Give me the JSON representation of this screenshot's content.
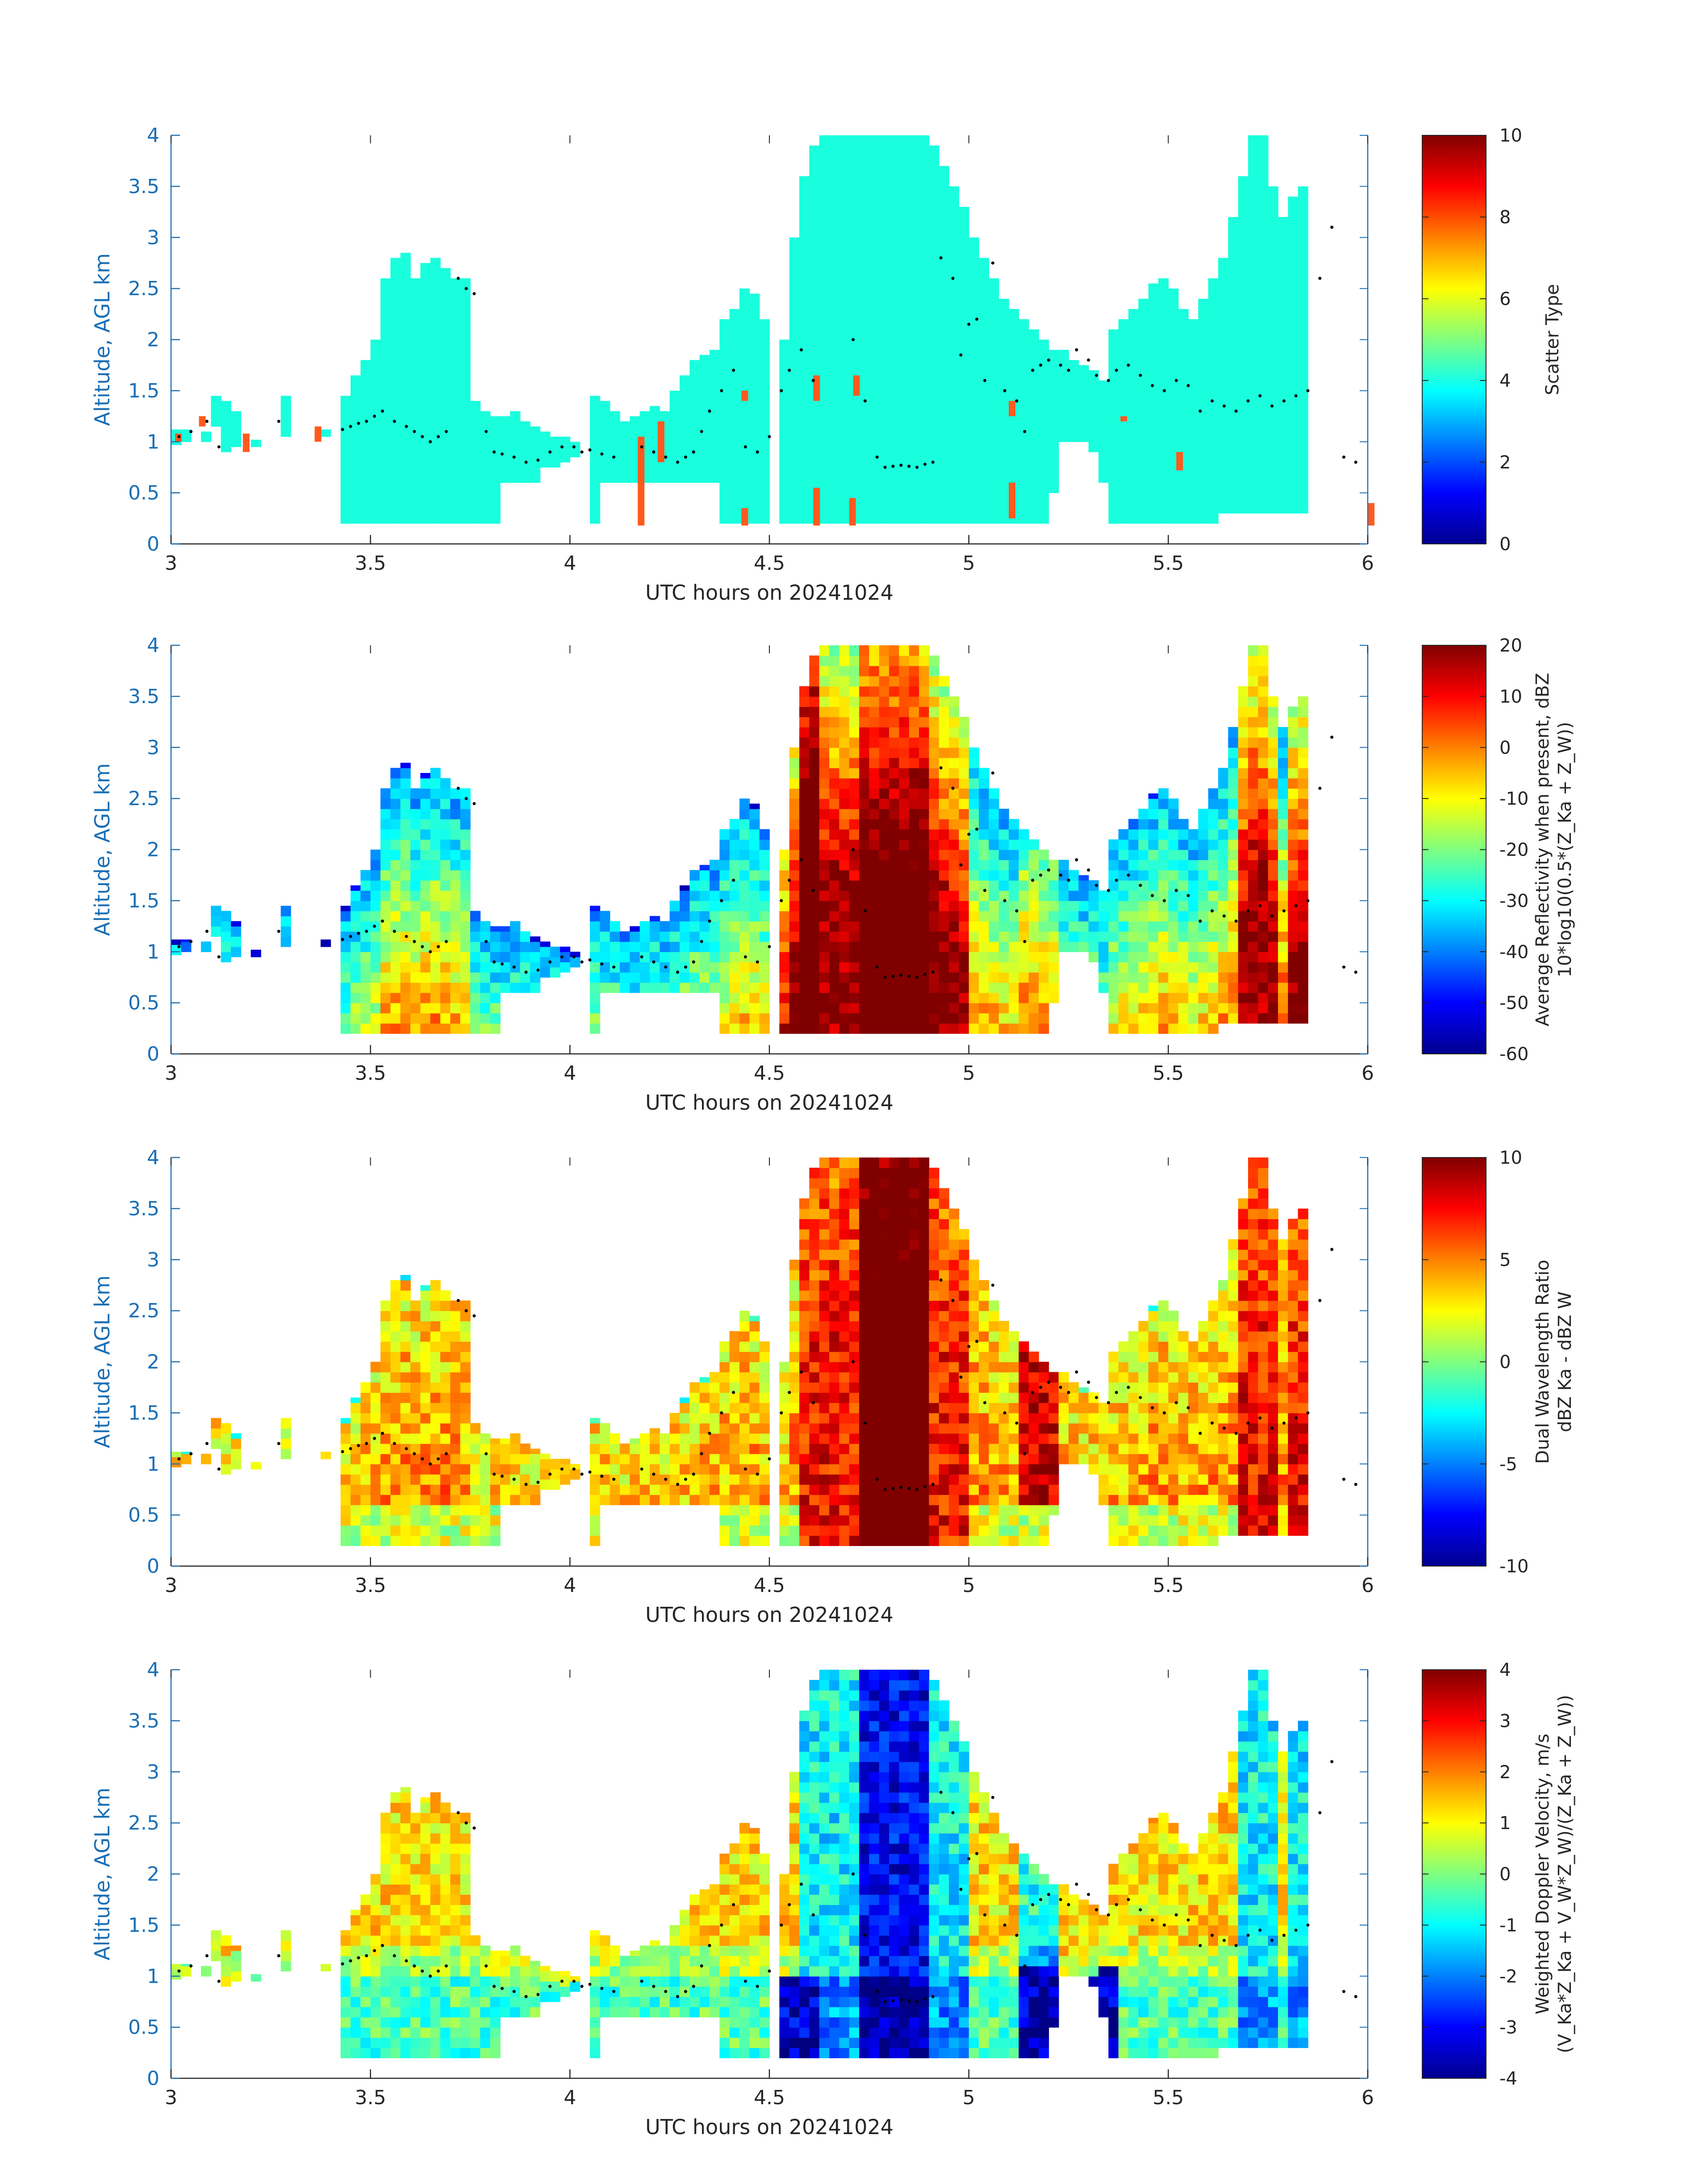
{
  "figure": {
    "date_label": "UTC hours on 20241024"
  },
  "chart_data": [
    {
      "type": "heatmap",
      "title": "",
      "xlabel": "UTC hours on 20241024",
      "ylabel": "Altitude, AGL km",
      "xlim": [
        3,
        6
      ],
      "ylim": [
        0,
        4
      ],
      "xticks": [
        3,
        3.5,
        4,
        4.5,
        5,
        5.5,
        6
      ],
      "yticks": [
        0,
        0.5,
        1,
        1.5,
        2,
        2.5,
        3,
        3.5,
        4
      ],
      "xtick_labels": [
        "3",
        "3.5",
        "4",
        "4.5",
        "5",
        "5.5",
        "6"
      ],
      "ytick_labels": [
        "0",
        "0.5",
        "1",
        "1.5",
        "2",
        "2.5",
        "3",
        "3.5",
        "4"
      ],
      "colorbar": {
        "label_lines": [
          "Scatter Type"
        ],
        "range": [
          0,
          10
        ],
        "ticks": [
          0,
          2,
          4,
          6,
          8,
          10
        ],
        "tick_labels": [
          "0",
          "2",
          "4",
          "6",
          "8",
          "10"
        ],
        "colormap": "jet"
      },
      "field": "scatter"
    },
    {
      "type": "heatmap",
      "title": "",
      "xlabel": "UTC hours on 20241024",
      "ylabel": "Altitude, AGL km",
      "xlim": [
        3,
        6
      ],
      "ylim": [
        0,
        4
      ],
      "xticks": [
        3,
        3.5,
        4,
        4.5,
        5,
        5.5,
        6
      ],
      "yticks": [
        0,
        0.5,
        1,
        1.5,
        2,
        2.5,
        3,
        3.5,
        4
      ],
      "xtick_labels": [
        "3",
        "3.5",
        "4",
        "4.5",
        "5",
        "5.5",
        "6"
      ],
      "ytick_labels": [
        "0",
        "0.5",
        "1",
        "1.5",
        "2",
        "2.5",
        "3",
        "3.5",
        "4"
      ],
      "colorbar": {
        "label_lines": [
          "Average Reflectivity when present, dBZ",
          "10*log10(0.5*(Z_Ka + Z_W))"
        ],
        "range": [
          -60,
          20
        ],
        "ticks": [
          -60,
          -50,
          -40,
          -30,
          -20,
          -10,
          0,
          10,
          20
        ],
        "tick_labels": [
          "-60",
          "-50",
          "-40",
          "-30",
          "-20",
          "-10",
          "0",
          "10",
          "20"
        ],
        "colormap": "jet"
      },
      "field": "reflectivity"
    },
    {
      "type": "heatmap",
      "title": "",
      "xlabel": "UTC hours on 20241024",
      "ylabel": "Altitude, AGL km",
      "xlim": [
        3,
        6
      ],
      "ylim": [
        0,
        4
      ],
      "xticks": [
        3,
        3.5,
        4,
        4.5,
        5,
        5.5,
        6
      ],
      "yticks": [
        0,
        0.5,
        1,
        1.5,
        2,
        2.5,
        3,
        3.5,
        4
      ],
      "xtick_labels": [
        "3",
        "3.5",
        "4",
        "4.5",
        "5",
        "5.5",
        "6"
      ],
      "ytick_labels": [
        "0",
        "0.5",
        "1",
        "1.5",
        "2",
        "2.5",
        "3",
        "3.5",
        "4"
      ],
      "colorbar": {
        "label_lines": [
          "Dual Wavelength Ratio",
          "dBZ Ka - dBZ W"
        ],
        "range": [
          -10,
          10
        ],
        "ticks": [
          -10,
          -5,
          0,
          5,
          10
        ],
        "tick_labels": [
          "-10",
          "-5",
          "0",
          "5",
          "10"
        ],
        "colormap": "jet"
      },
      "field": "dwr"
    },
    {
      "type": "heatmap",
      "title": "",
      "xlabel": "UTC hours on 20241024",
      "ylabel": "Altitude, AGL km",
      "xlim": [
        3,
        6
      ],
      "ylim": [
        0,
        4
      ],
      "xticks": [
        3,
        3.5,
        4,
        4.5,
        5,
        5.5,
        6
      ],
      "yticks": [
        0,
        0.5,
        1,
        1.5,
        2,
        2.5,
        3,
        3.5,
        4
      ],
      "xtick_labels": [
        "3",
        "3.5",
        "4",
        "4.5",
        "5",
        "5.5",
        "6"
      ],
      "ytick_labels": [
        "0",
        "0.5",
        "1",
        "1.5",
        "2",
        "2.5",
        "3",
        "3.5",
        "4"
      ],
      "colorbar": {
        "label_lines": [
          "Weighted Doppler Velocity, m/s",
          "(V_Ka*Z_Ka + V_W*Z_W)/(Z_Ka + Z_W))"
        ],
        "range": [
          -4,
          4
        ],
        "ticks": [
          -4,
          -3,
          -2,
          -1,
          0,
          1,
          2,
          3,
          4
        ],
        "tick_labels": [
          "-4",
          "-3",
          "-2",
          "-1",
          "0",
          "1",
          "2",
          "3",
          "4"
        ],
        "colormap": "jet"
      },
      "field": "velocity"
    }
  ],
  "cloud_columns": {
    "x_start": 3.0,
    "x_step": 0.025,
    "segments": [
      [
        [
          0.97,
          1.12
        ]
      ],
      [
        [
          1.0,
          1.12
        ]
      ],
      [],
      [
        [
          1.0,
          1.1
        ]
      ],
      [
        [
          1.15,
          1.45
        ]
      ],
      [
        [
          0.9,
          1.4
        ]
      ],
      [
        [
          0.95,
          1.3
        ]
      ],
      [],
      [
        [
          0.95,
          1.02
        ]
      ],
      [],
      [],
      [
        [
          1.05,
          1.45
        ]
      ],
      [],
      [],
      [],
      [
        [
          1.05,
          1.12
        ]
      ],
      [],
      [
        [
          0.2,
          1.45
        ]
      ],
      [
        [
          0.2,
          1.65
        ]
      ],
      [
        [
          0.2,
          1.8
        ]
      ],
      [
        [
          0.2,
          2.0
        ]
      ],
      [
        [
          0.2,
          2.6
        ]
      ],
      [
        [
          0.2,
          2.8
        ]
      ],
      [
        [
          0.2,
          2.85
        ]
      ],
      [
        [
          0.2,
          2.6
        ]
      ],
      [
        [
          0.2,
          2.75
        ]
      ],
      [
        [
          0.2,
          2.8
        ]
      ],
      [
        [
          0.2,
          2.7
        ]
      ],
      [
        [
          0.2,
          2.6
        ]
      ],
      [
        [
          0.2,
          2.6
        ]
      ],
      [
        [
          0.2,
          1.4
        ]
      ],
      [
        [
          0.2,
          1.3
        ]
      ],
      [
        [
          0.2,
          1.25
        ]
      ],
      [
        [
          0.6,
          1.25
        ]
      ],
      [
        [
          0.6,
          1.3
        ]
      ],
      [
        [
          0.6,
          1.2
        ]
      ],
      [
        [
          0.6,
          1.15
        ]
      ],
      [
        [
          0.75,
          1.1
        ]
      ],
      [
        [
          0.75,
          1.05
        ]
      ],
      [
        [
          0.8,
          1.05
        ]
      ],
      [
        [
          0.85,
          1.0
        ]
      ],
      [],
      [
        [
          0.2,
          1.45
        ]
      ],
      [
        [
          0.6,
          1.4
        ]
      ],
      [
        [
          0.6,
          1.3
        ]
      ],
      [
        [
          0.6,
          1.2
        ]
      ],
      [
        [
          0.6,
          1.25
        ]
      ],
      [
        [
          0.6,
          1.3
        ]
      ],
      [
        [
          0.6,
          1.35
        ]
      ],
      [
        [
          0.6,
          1.3
        ]
      ],
      [
        [
          0.6,
          1.5
        ]
      ],
      [
        [
          0.6,
          1.65
        ]
      ],
      [
        [
          0.6,
          1.8
        ]
      ],
      [
        [
          0.6,
          1.85
        ]
      ],
      [
        [
          0.6,
          1.9
        ]
      ],
      [
        [
          0.2,
          2.2
        ]
      ],
      [
        [
          0.2,
          2.3
        ]
      ],
      [
        [
          0.2,
          2.5
        ]
      ],
      [
        [
          0.2,
          2.45
        ]
      ],
      [
        [
          0.2,
          2.2
        ]
      ],
      [],
      [
        [
          0.2,
          2.0
        ]
      ],
      [
        [
          0.2,
          3.0
        ]
      ],
      [
        [
          0.2,
          3.6
        ]
      ],
      [
        [
          0.2,
          3.9
        ]
      ],
      [
        [
          0.2,
          4.0
        ]
      ],
      [
        [
          0.2,
          4.0
        ]
      ],
      [
        [
          0.2,
          4.0
        ]
      ],
      [
        [
          0.2,
          4.0
        ]
      ],
      [
        [
          0.2,
          4.0
        ]
      ],
      [
        [
          0.2,
          4.0
        ]
      ],
      [
        [
          0.2,
          4.0
        ]
      ],
      [
        [
          0.2,
          4.0
        ]
      ],
      [
        [
          0.2,
          4.0
        ]
      ],
      [
        [
          0.2,
          4.0
        ]
      ],
      [
        [
          0.2,
          4.0
        ]
      ],
      [
        [
          0.2,
          3.9
        ]
      ],
      [
        [
          0.2,
          3.7
        ]
      ],
      [
        [
          0.2,
          3.5
        ]
      ],
      [
        [
          0.2,
          3.3
        ]
      ],
      [
        [
          0.2,
          3.0
        ]
      ],
      [
        [
          0.2,
          2.8
        ]
      ],
      [
        [
          0.2,
          2.6
        ]
      ],
      [
        [
          0.2,
          2.4
        ]
      ],
      [
        [
          0.2,
          2.3
        ]
      ],
      [
        [
          0.2,
          2.2
        ]
      ],
      [
        [
          0.2,
          2.1
        ]
      ],
      [
        [
          0.2,
          2.0
        ]
      ],
      [
        [
          0.5,
          1.9
        ]
      ],
      [
        [
          1.0,
          1.9
        ]
      ],
      [
        [
          1.0,
          1.8
        ]
      ],
      [
        [
          1.0,
          1.75
        ]
      ],
      [
        [
          0.9,
          1.7
        ]
      ],
      [
        [
          0.6,
          1.6
        ]
      ],
      [
        [
          0.2,
          2.1
        ]
      ],
      [
        [
          0.2,
          2.2
        ]
      ],
      [
        [
          0.2,
          2.3
        ]
      ],
      [
        [
          0.2,
          2.4
        ]
      ],
      [
        [
          0.2,
          2.55
        ]
      ],
      [
        [
          0.2,
          2.6
        ]
      ],
      [
        [
          0.2,
          2.5
        ]
      ],
      [
        [
          0.2,
          2.3
        ]
      ],
      [
        [
          0.2,
          2.2
        ]
      ],
      [
        [
          0.2,
          2.4
        ]
      ],
      [
        [
          0.2,
          2.6
        ]
      ],
      [
        [
          0.3,
          2.8
        ]
      ],
      [
        [
          0.3,
          3.2
        ]
      ],
      [
        [
          0.3,
          3.6
        ]
      ],
      [
        [
          0.3,
          4.0
        ]
      ],
      [
        [
          0.3,
          4.0
        ]
      ],
      [
        [
          0.3,
          3.5
        ]
      ],
      [
        [
          0.3,
          3.2
        ]
      ],
      [
        [
          0.3,
          3.4
        ]
      ],
      [
        [
          0.3,
          3.5
        ]
      ]
    ]
  },
  "melting_layer_points": {
    "note_x_units": "UTC hours",
    "x": [
      3.02,
      3.05,
      3.09,
      3.12,
      3.27,
      3.43,
      3.45,
      3.47,
      3.49,
      3.51,
      3.53,
      3.56,
      3.59,
      3.61,
      3.63,
      3.65,
      3.67,
      3.69,
      3.72,
      3.74,
      3.76,
      3.79,
      3.81,
      3.83,
      3.86,
      3.89,
      3.92,
      3.95,
      3.98,
      4.01,
      4.03,
      4.05,
      4.08,
      4.11,
      4.18,
      4.21,
      4.24,
      4.27,
      4.29,
      4.31,
      4.33,
      4.35,
      4.38,
      4.41,
      4.44,
      4.47,
      4.5,
      4.53,
      4.55,
      4.58,
      4.61,
      4.71,
      4.74,
      4.77,
      4.79,
      4.81,
      4.83,
      4.85,
      4.87,
      4.89,
      4.91,
      4.93,
      4.96,
      4.98,
      5.0,
      5.02,
      5.04,
      5.06,
      5.09,
      5.12,
      5.14,
      5.16,
      5.18,
      5.2,
      5.23,
      5.25,
      5.27,
      5.3,
      5.32,
      5.35,
      5.37,
      5.4,
      5.43,
      5.46,
      5.49,
      5.52,
      5.55,
      5.58,
      5.61,
      5.64,
      5.67,
      5.7,
      5.73,
      5.76,
      5.79,
      5.82,
      5.85,
      5.88,
      5.91,
      5.94,
      5.97
    ],
    "y": [
      1.05,
      1.1,
      1.2,
      0.95,
      1.2,
      1.12,
      1.15,
      1.18,
      1.2,
      1.25,
      1.3,
      1.2,
      1.15,
      1.1,
      1.05,
      1.0,
      1.05,
      1.1,
      2.6,
      2.5,
      2.45,
      1.1,
      0.9,
      0.88,
      0.85,
      0.8,
      0.82,
      0.9,
      0.95,
      0.95,
      0.9,
      0.92,
      0.88,
      0.85,
      0.95,
      0.9,
      0.85,
      0.8,
      0.85,
      0.9,
      1.1,
      1.3,
      1.5,
      1.7,
      0.95,
      0.9,
      1.05,
      1.5,
      1.7,
      1.9,
      1.6,
      2.0,
      1.4,
      0.85,
      0.75,
      0.76,
      0.77,
      0.76,
      0.75,
      0.78,
      0.8,
      2.8,
      2.6,
      1.85,
      2.15,
      2.2,
      1.6,
      2.75,
      1.5,
      1.4,
      1.1,
      1.7,
      1.75,
      1.8,
      1.75,
      1.7,
      1.9,
      1.8,
      1.65,
      1.6,
      1.7,
      1.75,
      1.65,
      1.55,
      1.5,
      1.6,
      1.55,
      1.3,
      1.4,
      1.35,
      1.3,
      1.4,
      1.45,
      1.35,
      1.4,
      1.45,
      1.5,
      2.6,
      3.1,
      0.85,
      0.8
    ]
  }
}
